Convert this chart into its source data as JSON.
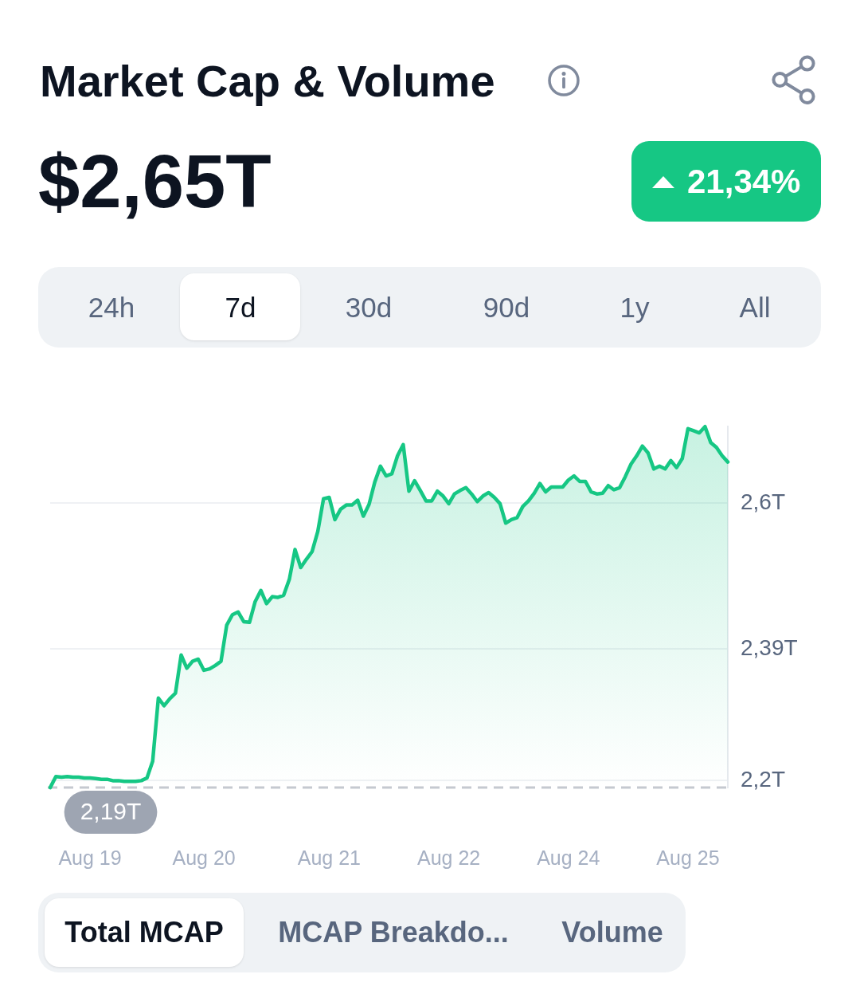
{
  "chart_data": {
    "type": "area",
    "title": "Market Cap & Volume",
    "subtitle": "$2,65T",
    "categories": [
      null,
      null,
      null,
      null,
      null,
      null,
      null,
      "Aug 19",
      null,
      null,
      null,
      null,
      null,
      null,
      null,
      null,
      null,
      null,
      null,
      null,
      null,
      null,
      null,
      null,
      null,
      null,
      null,
      "Aug 20",
      null,
      null,
      null,
      null,
      null,
      null,
      null,
      null,
      null,
      null,
      null,
      null,
      null,
      null,
      null,
      null,
      null,
      null,
      null,
      null,
      null,
      "Aug 21",
      null,
      null,
      null,
      null,
      null,
      null,
      null,
      null,
      null,
      null,
      null,
      null,
      null,
      null,
      null,
      null,
      null,
      null,
      null,
      null,
      "Aug 22",
      null,
      null,
      null,
      null,
      null,
      null,
      null,
      null,
      null,
      null,
      null,
      null,
      null,
      null,
      null,
      null,
      null,
      null,
      null,
      null,
      "Aug 24",
      null,
      null,
      null,
      null,
      null,
      null,
      null,
      null,
      null,
      null,
      null,
      null,
      null,
      null,
      null,
      null,
      null,
      null,
      null,
      null,
      "Aug 25",
      null,
      null,
      null,
      null,
      null,
      null,
      null
    ],
    "values": [
      2.19,
      2.206,
      2.205,
      2.206,
      2.205,
      2.205,
      2.204,
      2.204,
      2.203,
      2.202,
      2.202,
      2.2,
      2.2,
      2.199,
      2.199,
      2.199,
      2.2,
      2.204,
      2.228,
      2.319,
      2.308,
      2.318,
      2.326,
      2.381,
      2.362,
      2.372,
      2.375,
      2.359,
      2.361,
      2.366,
      2.372,
      2.424,
      2.439,
      2.443,
      2.429,
      2.428,
      2.458,
      2.474,
      2.455,
      2.465,
      2.464,
      2.467,
      2.49,
      2.533,
      2.507,
      2.519,
      2.53,
      2.559,
      2.606,
      2.608,
      2.576,
      2.591,
      2.597,
      2.597,
      2.604,
      2.581,
      2.598,
      2.63,
      2.653,
      2.639,
      2.642,
      2.668,
      2.684,
      2.617,
      2.632,
      2.618,
      2.603,
      2.603,
      2.617,
      2.61,
      2.599,
      2.613,
      2.618,
      2.622,
      2.613,
      2.602,
      2.61,
      2.615,
      2.608,
      2.599,
      2.571,
      2.576,
      2.579,
      2.595,
      2.603,
      2.614,
      2.628,
      2.616,
      2.623,
      2.623,
      2.623,
      2.633,
      2.639,
      2.631,
      2.631,
      2.616,
      2.613,
      2.614,
      2.625,
      2.619,
      2.622,
      2.638,
      2.656,
      2.668,
      2.682,
      2.672,
      2.649,
      2.653,
      2.649,
      2.661,
      2.651,
      2.664,
      2.707,
      2.704,
      2.701,
      2.71,
      2.687,
      2.68,
      2.668,
      2.659
    ],
    "color": "#16c784",
    "marker": "none",
    "ylim": [
      2.19,
      2.71
    ],
    "yticks": [
      {
        "value": 2.2,
        "label": "2,2T"
      },
      {
        "value": 2.39,
        "label": "2,39T"
      },
      {
        "value": 2.6,
        "label": "2,6T"
      }
    ],
    "grid": "y",
    "ref_lines": [
      {
        "axis": "y",
        "value": 2.19,
        "label": "2,19T",
        "color": "#c5c9d0",
        "line_style": "dashed"
      }
    ],
    "annotations": [
      "21,34%",
      "24h",
      "7d",
      "30d",
      "90d",
      "1y",
      "All",
      "Total MCAP",
      "MCAP Breakdo...",
      "Volume"
    ]
  }
}
